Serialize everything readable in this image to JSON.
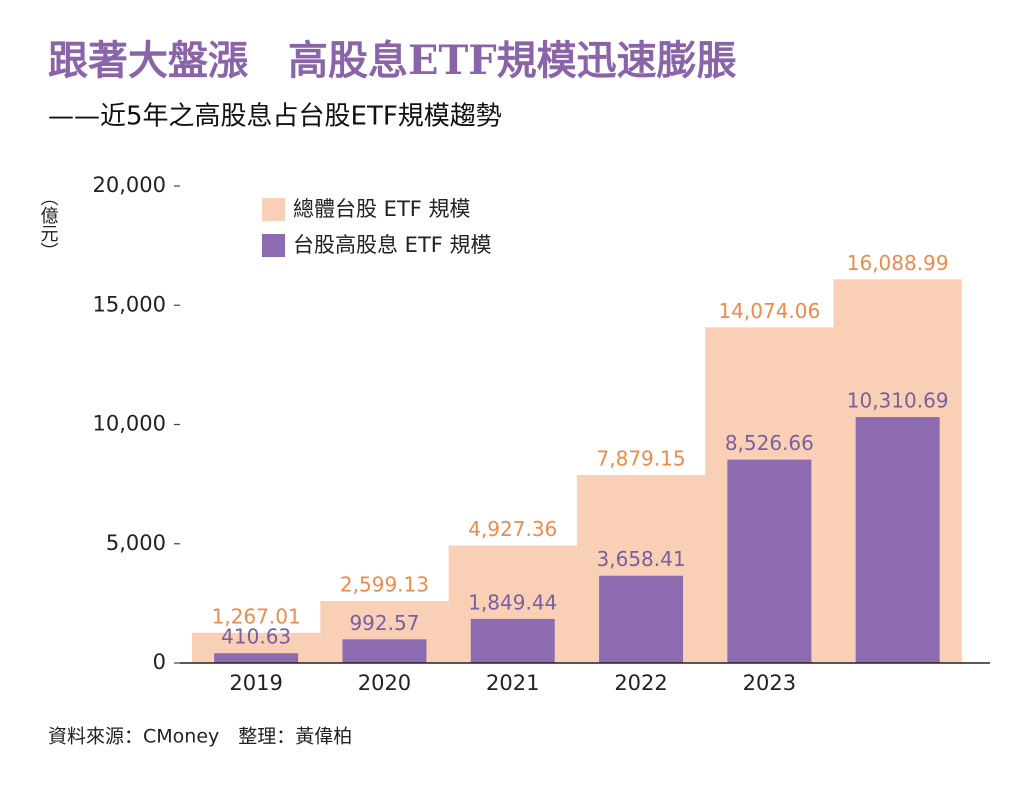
{
  "chart_data": {
    "type": "bar",
    "title": "跟著大盤漲　高股息ETF規模迅速膨脹",
    "subtitle": "——近5年之高股息占台股ETF規模趨勢",
    "y_label": "（億元）",
    "source": "資料來源：CMoney　整理：黃偉柏",
    "categories": [
      "2019",
      "2020",
      "2021",
      "2022",
      "2023",
      null
    ],
    "series": [
      {
        "name": "總體台股 ETF 規模",
        "color": "#f9d0b6",
        "label_color": "#f08a4b",
        "values": [
          1267.01,
          2599.13,
          4927.36,
          7879.15,
          14074.06,
          16088.99
        ],
        "value_labels": [
          "1,267.01",
          "2,599.13",
          "4,927.36",
          "7,879.15",
          "14,074.06",
          "16,088.99"
        ]
      },
      {
        "name": "台股高股息 ETF 規模",
        "color": "#8c6bb1",
        "label_color": "#7a5f9e",
        "values": [
          410.63,
          992.57,
          1849.44,
          3658.41,
          8526.66,
          10310.69
        ],
        "value_labels": [
          "410.63",
          "992.57",
          "1,849.44",
          "3,658.41",
          "8,526.66",
          "10,310.69"
        ]
      }
    ],
    "ylim": [
      0,
      20000
    ],
    "yticks": [
      0,
      {
        "value": 5000,
        "label": "5,000"
      },
      {
        "value": 10000,
        "label": "10,000"
      },
      {
        "value": 15000,
        "label": "15,000"
      },
      {
        "value": 20000,
        "label": "20,000"
      }
    ]
  }
}
